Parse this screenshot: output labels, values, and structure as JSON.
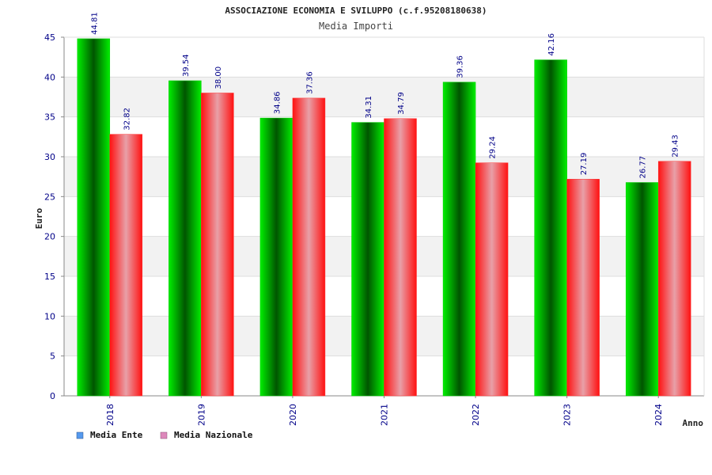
{
  "chart_data": {
    "type": "bar",
    "title": "ASSOCIAZIONE ECONOMIA E SVILUPPO (c.f.95208180638)",
    "subtitle": "Media Importi",
    "xlabel": "Anno",
    "ylabel": "Euro",
    "ylim": [
      0,
      45
    ],
    "yticks": [
      "0",
      "5",
      "10",
      "15",
      "20",
      "25",
      "30",
      "35",
      "40",
      "45"
    ],
    "categories": [
      "2018",
      "2019",
      "2020",
      "2021",
      "2022",
      "2023",
      "2024"
    ],
    "series": [
      {
        "name": "Media Ente",
        "values": [
          44.81,
          39.54,
          34.86,
          34.31,
          39.36,
          42.16,
          26.77
        ],
        "labels": [
          "44.81",
          "39.54",
          "34.86",
          "34.31",
          "39.36",
          "42.16",
          "26.77"
        ],
        "color": "#00aa00",
        "legend_color": "#5599ee"
      },
      {
        "name": "Media Nazionale",
        "values": [
          32.82,
          38.0,
          37.36,
          34.79,
          29.24,
          27.19,
          29.43
        ],
        "labels": [
          "32.82",
          "38.00",
          "37.36",
          "34.79",
          "29.24",
          "27.19",
          "29.43"
        ],
        "color": "#ee1111",
        "legend_color": "#dd88bb"
      }
    ],
    "grid": true,
    "legend_position": "bottom-left"
  }
}
